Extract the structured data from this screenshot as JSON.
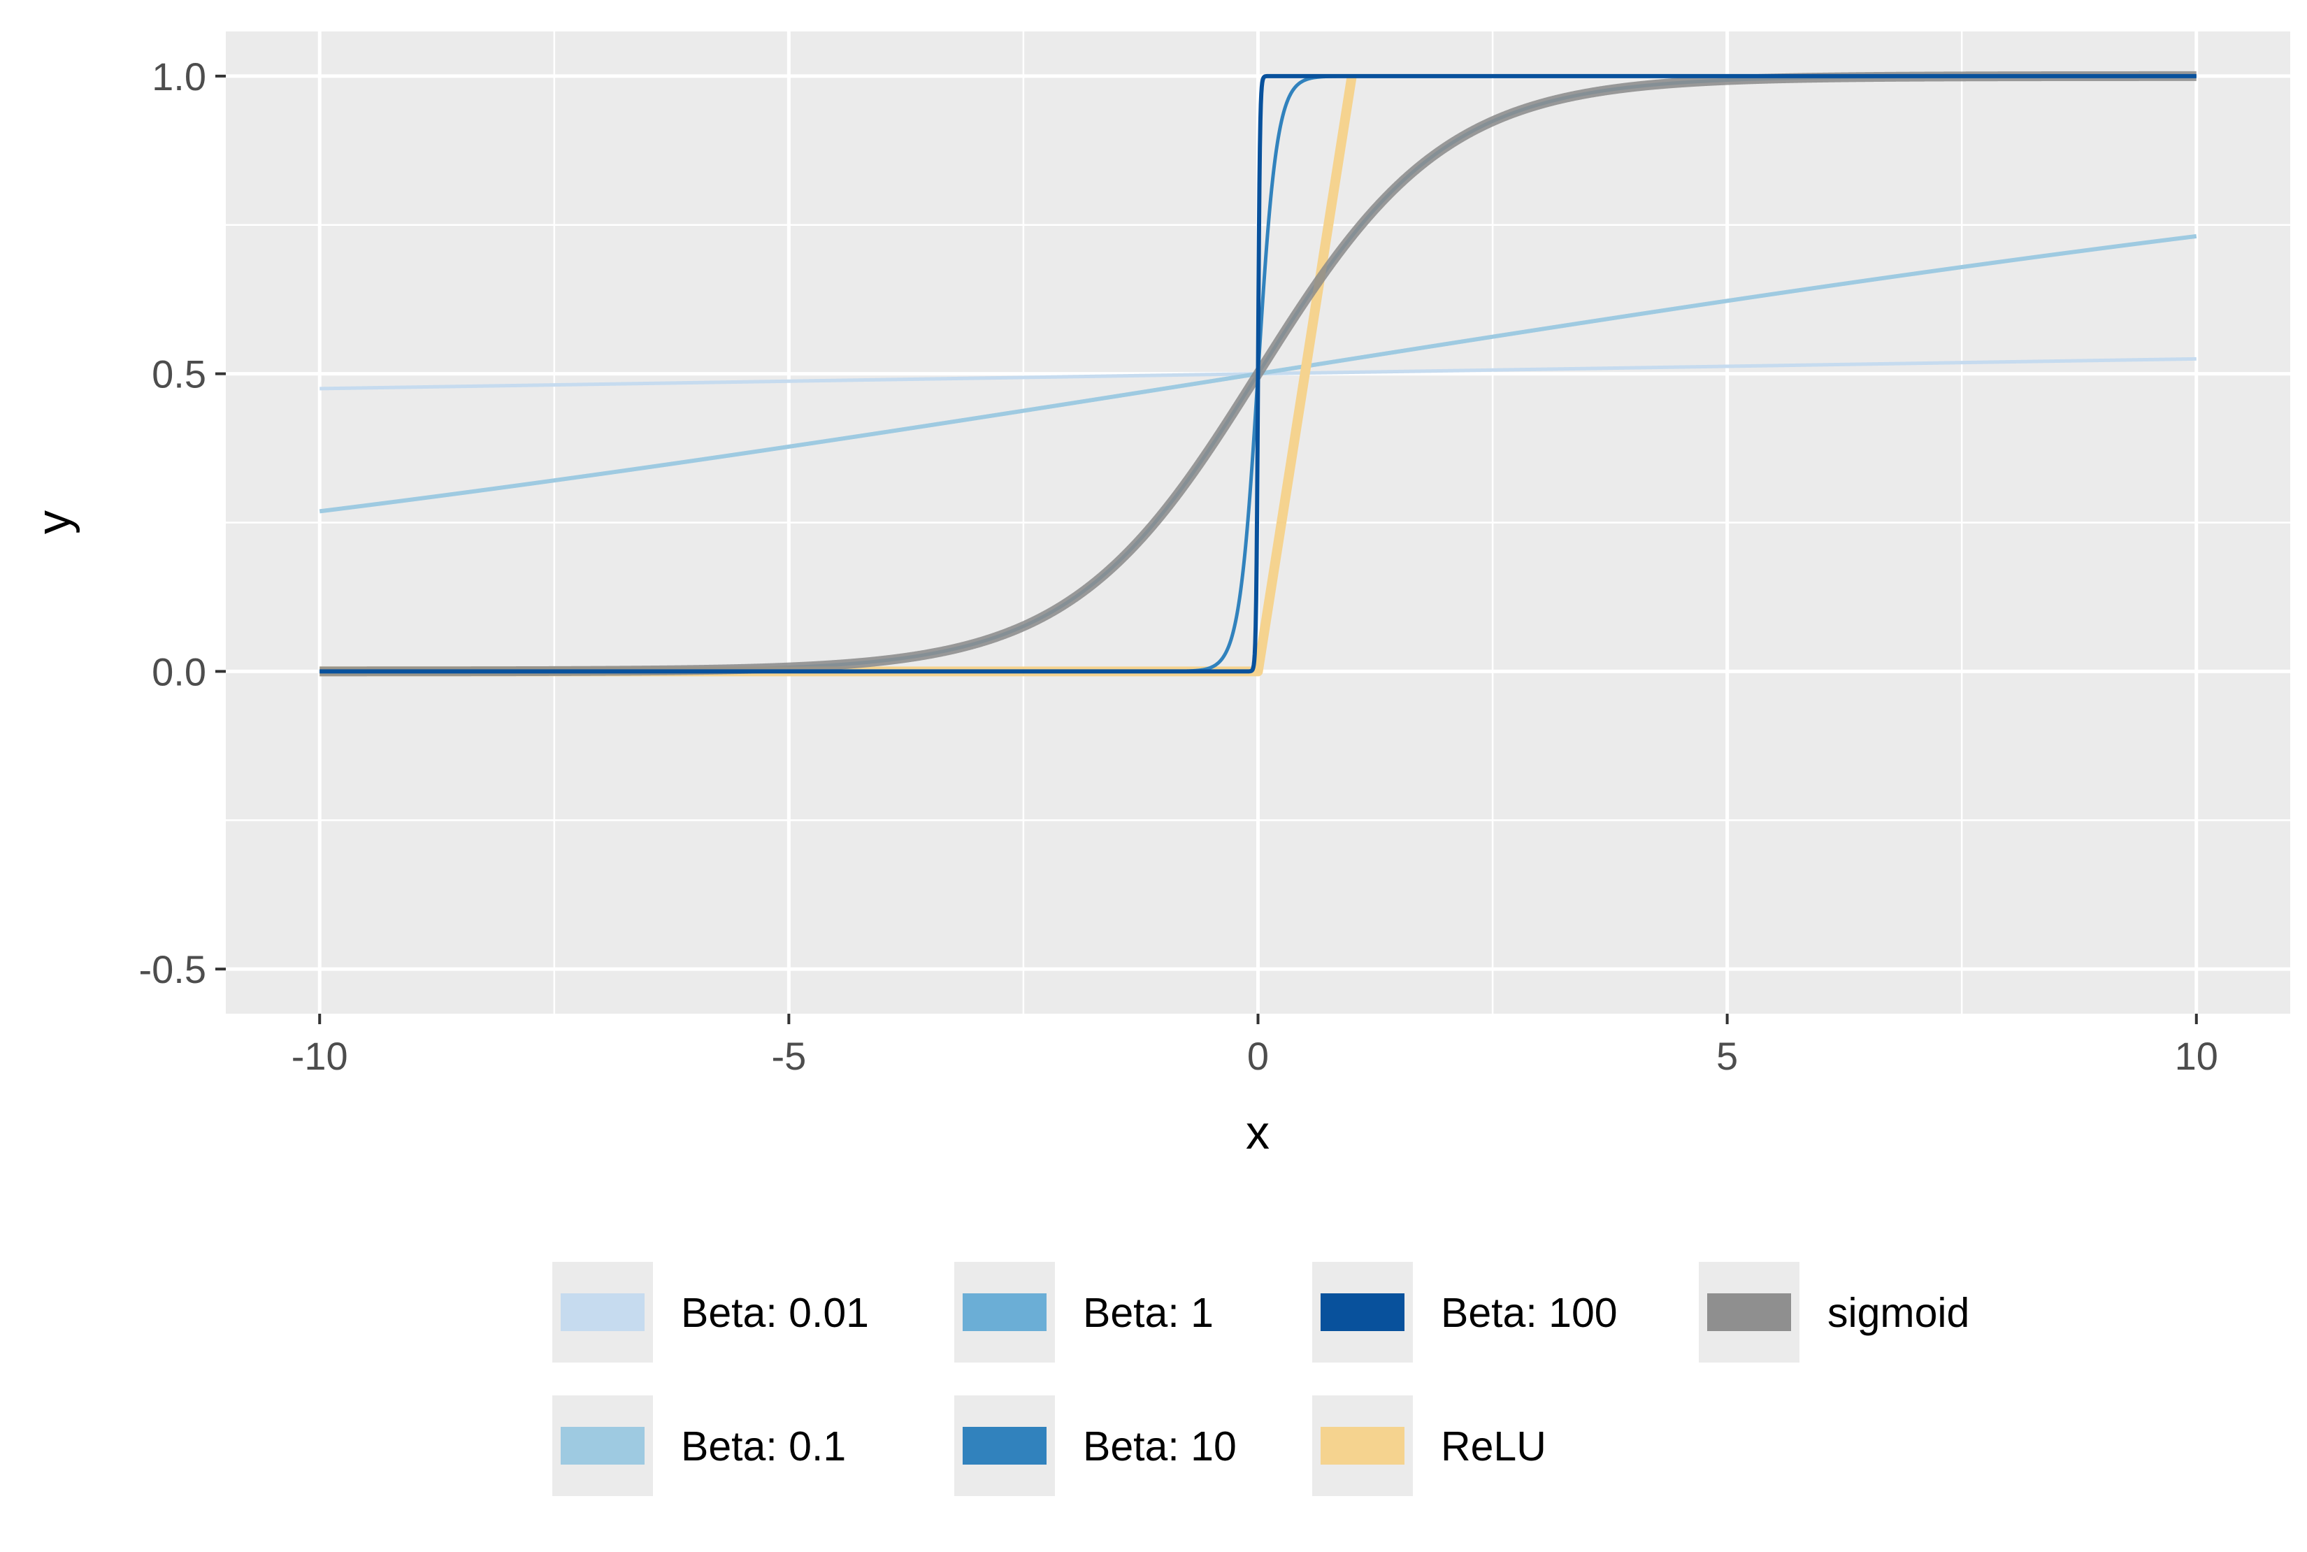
{
  "chart_data": {
    "type": "line",
    "title": "",
    "xlabel": "x",
    "ylabel": "y",
    "xlim": [
      -11,
      11
    ],
    "ylim": [
      -0.575,
      1.075
    ],
    "x_ticks": [
      -10,
      -5,
      0,
      5,
      10
    ],
    "x_tick_labels": [
      "-10",
      "-5",
      "0",
      "5",
      "10"
    ],
    "y_ticks": [
      -0.5,
      0.0,
      0.5,
      1.0
    ],
    "y_tick_labels": [
      "-0.5",
      "0.0",
      "0.5",
      "1.0"
    ],
    "grid": true,
    "background": "#ebebeb",
    "legend_position": "bottom",
    "series": [
      {
        "name": "Beta: 0.01",
        "kind": "sigmoid_beta",
        "beta": 0.01,
        "color": "#c6dbef",
        "width": 5
      },
      {
        "name": "Beta: 0.1",
        "kind": "sigmoid_beta",
        "beta": 0.1,
        "color": "#9ecae1",
        "width": 6
      },
      {
        "name": "Beta: 1",
        "kind": "sigmoid_beta",
        "beta": 1,
        "color": "#6baed6",
        "width": 5
      },
      {
        "name": "Beta: 10",
        "kind": "sigmoid_beta",
        "beta": 10,
        "color": "#3182bd",
        "width": 5
      },
      {
        "name": "Beta: 100",
        "kind": "sigmoid_beta",
        "beta": 100,
        "color": "#08519c",
        "width": 6
      },
      {
        "name": "ReLU",
        "kind": "relu_clipped",
        "color": "#f5d38f",
        "width": 14
      },
      {
        "name": "sigmoid",
        "kind": "sigmoid",
        "color": "#8a8a8a",
        "width": 14
      }
    ],
    "x_range": [
      -10,
      10
    ],
    "sample_points": {
      "x": [
        -10,
        -5,
        -2,
        -1,
        0,
        1,
        2,
        5,
        10
      ],
      "Beta: 0.01": [
        0.475,
        0.488,
        0.495,
        0.4975,
        0.5,
        0.5025,
        0.505,
        0.512,
        0.525
      ],
      "Beta: 0.1": [
        0.269,
        0.378,
        0.45,
        0.475,
        0.5,
        0.525,
        0.55,
        0.622,
        0.731
      ],
      "sigmoid": [
        0.0,
        0.007,
        0.119,
        0.269,
        0.5,
        0.731,
        0.881,
        0.993,
        1.0
      ],
      "ReLU": [
        0,
        0,
        0,
        0,
        0,
        1,
        1,
        1,
        1
      ]
    }
  }
}
